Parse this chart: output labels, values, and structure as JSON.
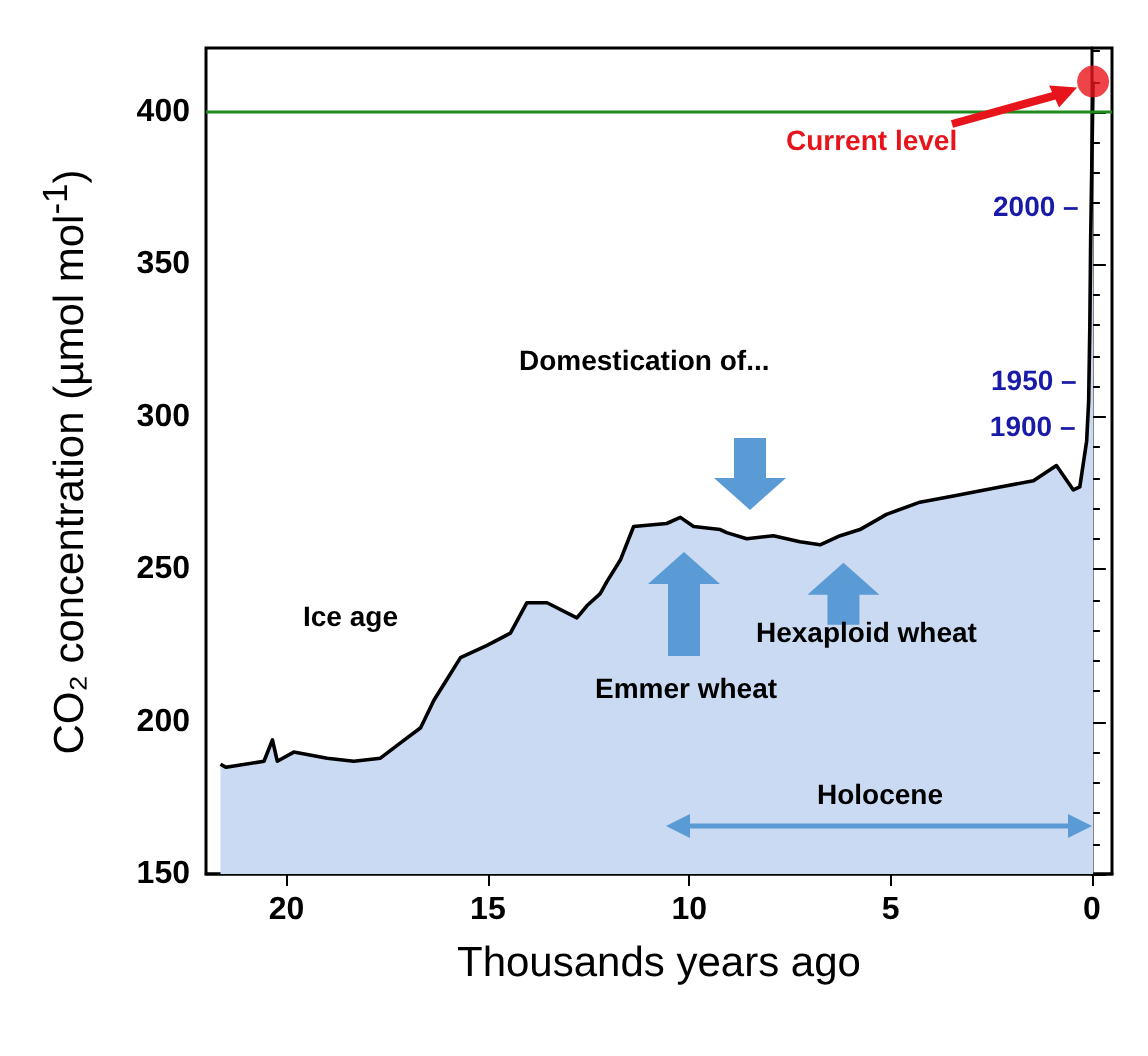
{
  "chart_data": {
    "type": "area",
    "xlabel": "Thousands years ago",
    "ylabel": "CO₂ concentration (µmol mol$^{-1}$)",
    "xlim": [
      22,
      -0.5
    ],
    "xticks": [
      20,
      15,
      10,
      5,
      0
    ],
    "ylim": [
      150,
      421
    ],
    "yticks": [
      150,
      200,
      250,
      300,
      350,
      400
    ],
    "grid": false,
    "series": [
      {
        "color": "#c9daf2",
        "x": [
          21.64,
          21.5,
          20.56,
          20.35,
          20.23,
          19.82,
          18.99,
          18.33,
          17.67,
          17.17,
          16.67,
          16.34,
          16.01,
          15.68,
          15.02,
          14.44,
          14.03,
          13.53,
          12.79,
          12.54,
          12.21,
          12.04,
          11.71,
          11.38,
          10.56,
          10.22,
          9.89,
          9.23,
          9.07,
          8.57,
          7.91,
          7.25,
          6.75,
          6.25,
          5.76,
          5.1,
          4.27,
          3.44,
          2.28,
          1.45,
          0.88,
          0.46,
          0.3,
          0.13,
          0.08,
          0.05,
          0.03,
          -0.03
        ],
        "values": [
          186,
          185,
          187,
          194,
          187,
          190,
          188,
          187,
          188,
          193,
          198,
          207,
          214,
          221,
          225,
          229,
          239,
          239,
          234,
          238,
          242,
          246,
          253,
          264,
          265,
          267,
          264,
          263,
          262,
          260,
          261,
          259,
          258,
          261,
          263,
          268,
          272,
          274,
          277,
          279,
          284,
          276,
          277,
          292,
          305,
          330,
          358,
          410
        ]
      },
      {
        "type": "scatter",
        "color": "#e8141b",
        "x": [
          -0.03
        ],
        "values": [
          410
        ]
      }
    ],
    "ref_lines": [
      {
        "axis": "y",
        "value": 400,
        "color": "#1e8a1e"
      }
    ],
    "annotations": [
      "Current level",
      {
        "text": "2000 –",
        "x": 0.02,
        "y": 369
      },
      {
        "text": "1950 –",
        "x": 0.07,
        "y": 312
      },
      {
        "text": "1900 –",
        "x": 0.1,
        "y": 297
      },
      "Domestication of...",
      "Emmer wheat",
      {
        "text": "Hexaploid wheat",
        "x": 6.17,
        "y": 260
      },
      "Ice age",
      "Holocene"
    ]
  }
}
